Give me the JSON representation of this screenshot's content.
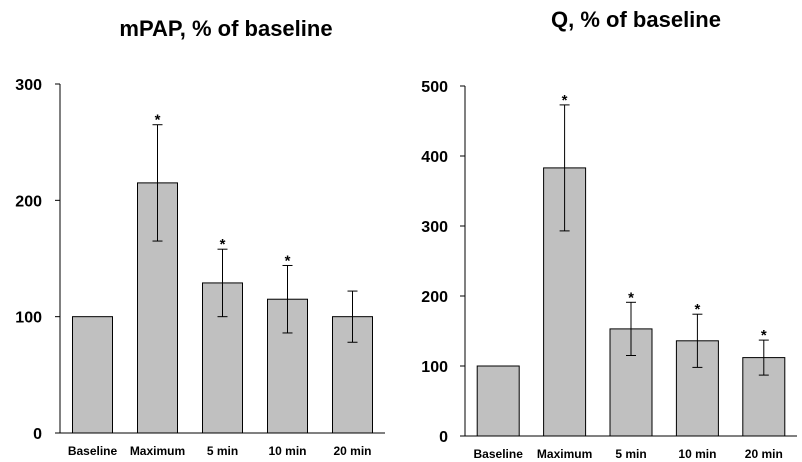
{
  "chart_data": [
    {
      "type": "bar",
      "title": "mPAP, % of baseline",
      "categories": [
        "Baseline",
        "Maximum",
        "5 min",
        "10 min",
        "20 min"
      ],
      "values": [
        100,
        215,
        129,
        115,
        100
      ],
      "errors": [
        0,
        50,
        29,
        29,
        22
      ],
      "significant": [
        false,
        true,
        true,
        true,
        false
      ],
      "significance_marker": "*",
      "yticks": [
        0,
        100,
        200,
        300
      ],
      "ylim": [
        0,
        300
      ],
      "grid": false,
      "bar_color": "#c0c0c0"
    },
    {
      "type": "bar",
      "title": "Q, % of baseline",
      "categories": [
        "Baseline",
        "Maximum",
        "5 min",
        "10 min",
        "20 min"
      ],
      "values": [
        100,
        383,
        153,
        136,
        112
      ],
      "errors": [
        0,
        90,
        38,
        38,
        25
      ],
      "significant": [
        false,
        true,
        true,
        true,
        true
      ],
      "significance_marker": "*",
      "yticks": [
        0,
        100,
        200,
        300,
        400,
        500
      ],
      "ylim": [
        0,
        500
      ],
      "grid": false,
      "bar_color": "#c0c0c0"
    }
  ]
}
